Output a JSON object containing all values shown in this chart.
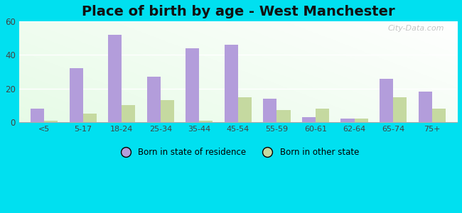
{
  "title": "Place of birth by age - West Manchester",
  "categories": [
    "<5",
    "5-17",
    "18-24",
    "25-34",
    "35-44",
    "45-54",
    "55-59",
    "60-61",
    "62-64",
    "65-74",
    "75+"
  ],
  "series1_label": "Born in state of residence",
  "series1_color": "#b39ddb",
  "series1_values": [
    8,
    32,
    52,
    27,
    44,
    46,
    14,
    3,
    2,
    26,
    18
  ],
  "series2_label": "Born in other state",
  "series2_color": "#c5d9a0",
  "series2_values": [
    1,
    5,
    10,
    13,
    1,
    15,
    7,
    8,
    2,
    15,
    8
  ],
  "ylim": [
    0,
    60
  ],
  "yticks": [
    0,
    20,
    40,
    60
  ],
  "outer_bg": "#00e0f0",
  "title_fontsize": 14,
  "bar_width": 0.35,
  "watermark": "City-Data.com"
}
